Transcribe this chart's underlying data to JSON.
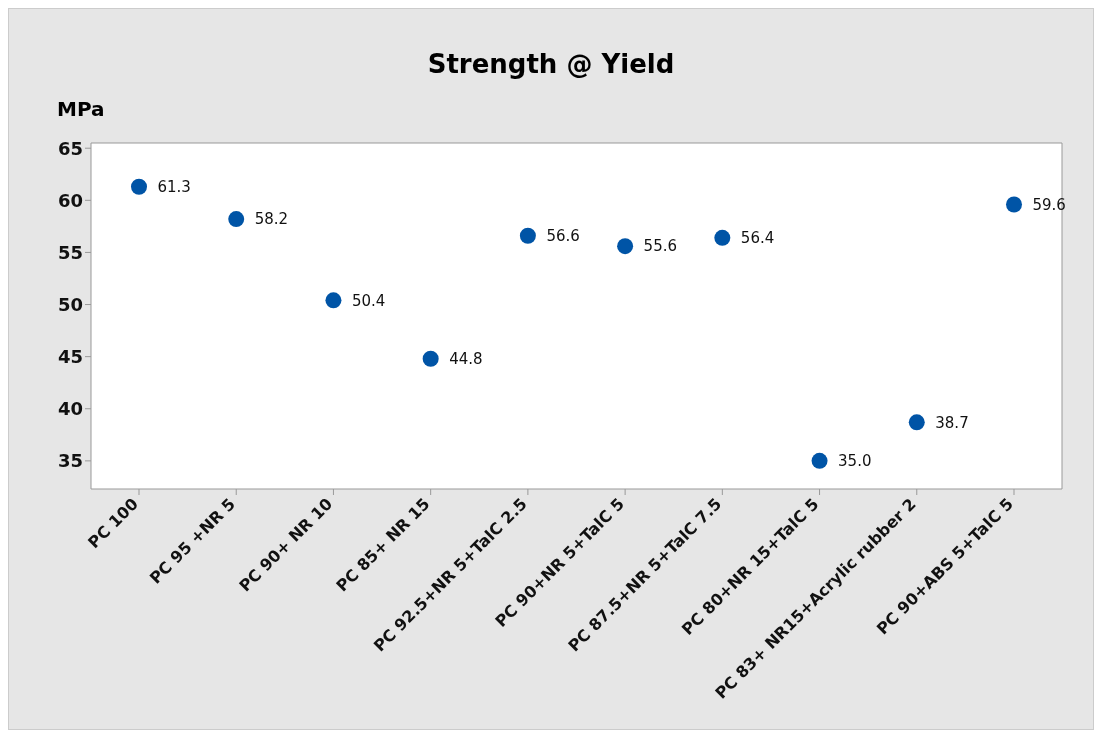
{
  "chart_data": {
    "type": "scatter",
    "title": "Strength @ Yield",
    "ylabel": "MPa",
    "categories": [
      "PC 100",
      "PC 95 +NR 5",
      "PC 90+ NR 10",
      "PC 85+ NR 15",
      "PC 92.5+NR 5+TalC 2.5",
      "PC 90+NR 5+TalC 5",
      "PC 87.5+NR 5+TalC 7.5",
      "PC 80+NR 15+TalC 5",
      "PC 83+ NR15+Acrylic rubber 2",
      "PC 90+ABS 5+TalC 5"
    ],
    "values": [
      61.3,
      58.2,
      50.4,
      44.8,
      56.6,
      55.6,
      56.4,
      35.0,
      38.7,
      59.6
    ],
    "value_labels": [
      "61.3",
      "58.2",
      "50.4",
      "44.8",
      "56.6",
      "55.6",
      "56.4",
      "35.0",
      "38.7",
      "59.6"
    ],
    "color": "#0054a6",
    "marker": "circle",
    "ylim": [
      32.3,
      65.5
    ],
    "yticks": [
      35,
      40,
      45,
      50,
      55,
      60,
      65
    ],
    "grid": false
  }
}
